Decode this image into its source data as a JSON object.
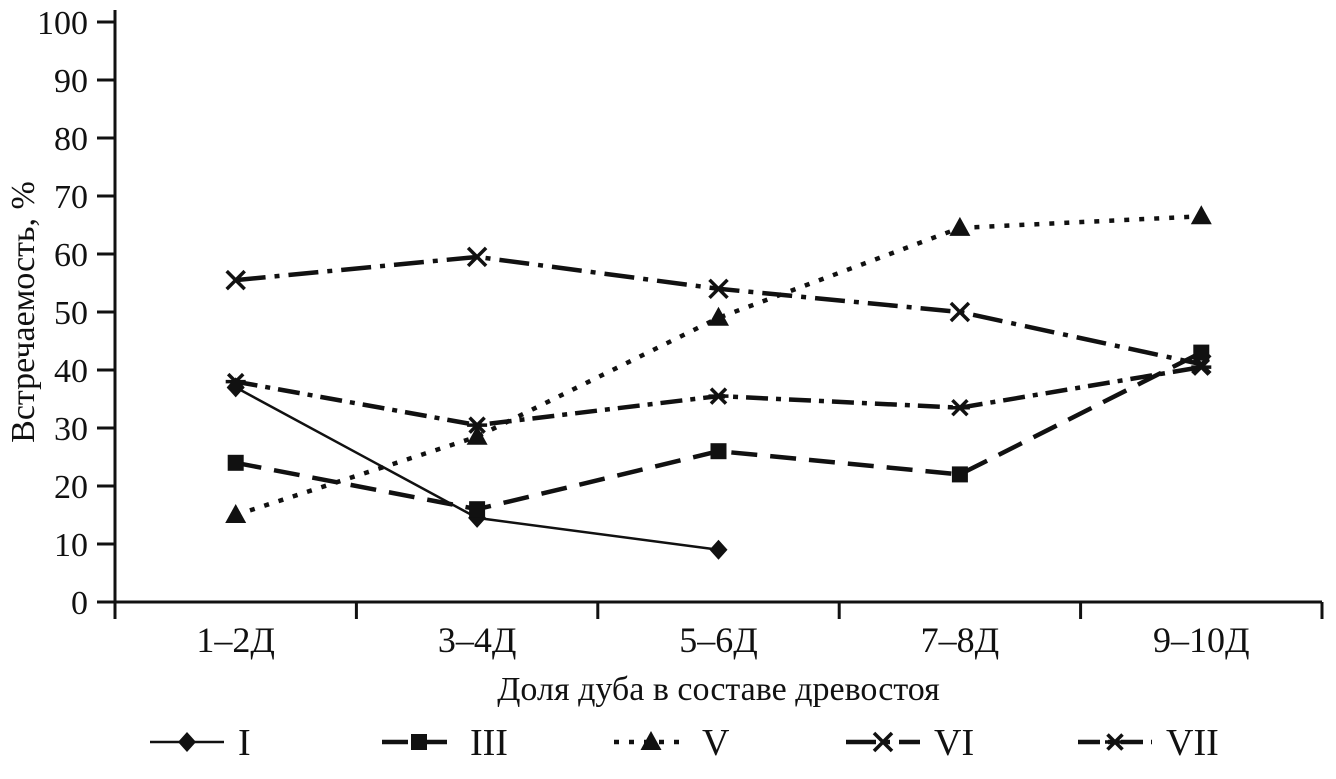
{
  "chart_data": {
    "type": "line",
    "title": "",
    "xlabel": "Доля дуба в составе древостоя",
    "ylabel": "Встречаемость, %",
    "categories": [
      "1–2Д",
      "3–4Д",
      "5–6Д",
      "7–8Д",
      "9–10Д"
    ],
    "ylim": [
      0,
      100
    ],
    "ytick_step": 10,
    "grid": false,
    "legend_position": "bottom",
    "series": [
      {
        "name": "I",
        "marker": "diamond",
        "dash": "solid",
        "width": 2.5,
        "values": [
          37,
          14.5,
          9
        ]
      },
      {
        "name": "III",
        "marker": "square",
        "dash": "dashed",
        "width": 4.5,
        "values": [
          24,
          16,
          26,
          22,
          43
        ]
      },
      {
        "name": "V",
        "marker": "triangle",
        "dash": "dotted",
        "width": 4.5,
        "values": [
          15,
          28.5,
          49,
          64.5,
          66.5
        ]
      },
      {
        "name": "VI",
        "marker": "x",
        "dash": "dashdot",
        "width": 4.5,
        "values": [
          55.5,
          59.5,
          54,
          50,
          41
        ]
      },
      {
        "name": "VII",
        "marker": "asterisk",
        "dash": "dashdot2",
        "width": 4.5,
        "values": [
          38,
          30.5,
          35.5,
          33.5,
          40.5
        ]
      }
    ],
    "colors": {
      "line": "#111111",
      "background": "#ffffff"
    }
  }
}
